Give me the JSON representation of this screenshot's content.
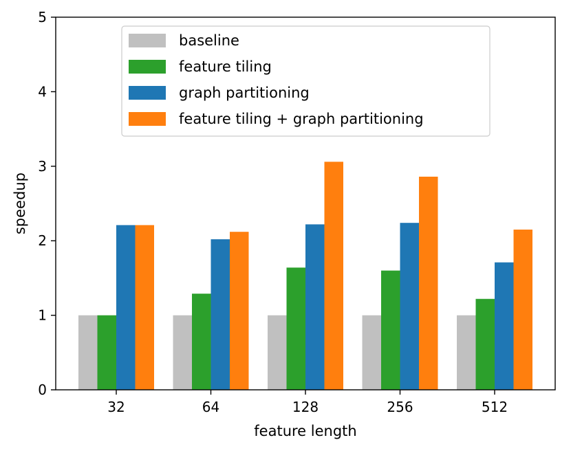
{
  "chart_data": {
    "type": "bar",
    "title": "",
    "xlabel": "feature length",
    "ylabel": "speedup",
    "ylim": [
      0,
      5
    ],
    "yticks": [
      "0",
      "1",
      "2",
      "3",
      "4",
      "5"
    ],
    "categories": [
      "32",
      "64",
      "128",
      "256",
      "512"
    ],
    "grid": false,
    "legend_position": "top-center",
    "series": [
      {
        "name": "baseline",
        "color": "#c0c0c0",
        "values": [
          1.0,
          1.0,
          1.0,
          1.0,
          1.0
        ]
      },
      {
        "name": "feature tiling",
        "color": "#2ca02c",
        "values": [
          1.0,
          1.29,
          1.64,
          1.6,
          1.22
        ]
      },
      {
        "name": "graph partitioning",
        "color": "#1f77b4",
        "values": [
          2.21,
          2.02,
          2.22,
          2.24,
          1.71
        ]
      },
      {
        "name": "feature tiling + graph partitioning",
        "color": "#ff7f0e",
        "values": [
          2.21,
          2.12,
          3.06,
          2.86,
          2.15
        ]
      }
    ]
  }
}
